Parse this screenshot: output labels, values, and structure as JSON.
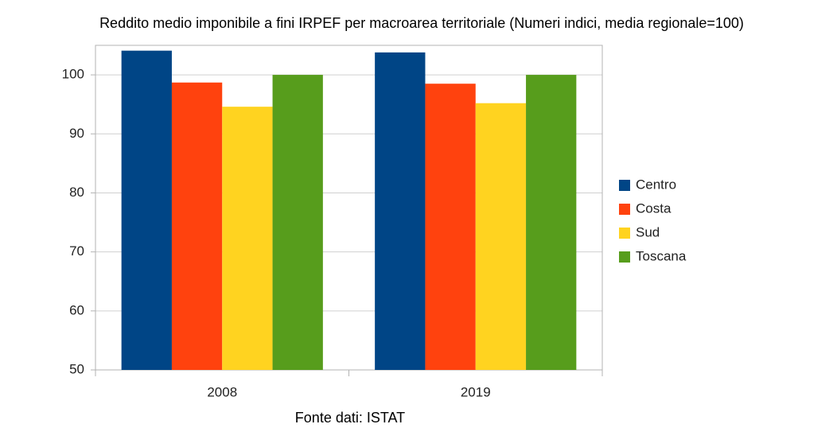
{
  "chart_data": {
    "type": "bar",
    "title": "Reddito medio imponibile a fini IRPEF per macroarea territoriale (Numeri indici, media regionale=100)",
    "source": "Fonte dati: ISTAT",
    "categories": [
      "2008",
      "2019"
    ],
    "series": [
      {
        "name": "Centro",
        "color": "#004586",
        "values": [
          104.1,
          103.8
        ]
      },
      {
        "name": "Costa",
        "color": "#ff420e",
        "values": [
          98.7,
          98.5
        ]
      },
      {
        "name": "Sud",
        "color": "#ffd320",
        "values": [
          94.6,
          95.2
        ]
      },
      {
        "name": "Toscana",
        "color": "#579d1c",
        "values": [
          100,
          100
        ]
      }
    ],
    "ylim": [
      50,
      105
    ],
    "yticks": [
      50,
      60,
      70,
      80,
      90,
      100
    ],
    "grid": true,
    "legend": "right"
  }
}
